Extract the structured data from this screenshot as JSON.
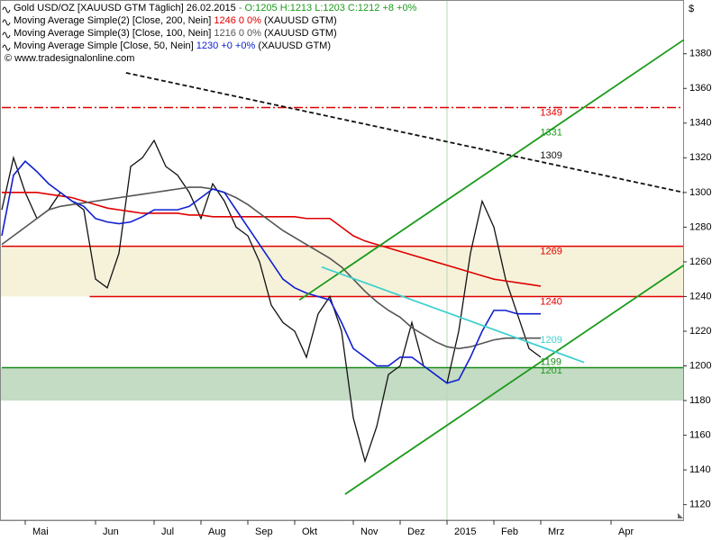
{
  "chart_data": {
    "type": "line",
    "currency": "$",
    "header": [
      {
        "text": "Gold USD/OZ [XAUUSD GTM  Täglich] 26.02.2015",
        "value_text": " - O:1205 H:1213 L:1203 C:1212 +8 +0%",
        "value_color": "#1a9a1a",
        "suffix": ""
      },
      {
        "text": "Moving Average Simple(2) [Close, 200, Nein]",
        "value_text": " 1246 0 0%",
        "value_color": "#e00000",
        "suffix": " (XAUUSD GTM)"
      },
      {
        "text": "Moving Average Simple(3) [Close, 100, Nein]",
        "value_text": " 1216 0 0%",
        "value_color": "#555555",
        "suffix": " (XAUUSD GTM)"
      },
      {
        "text": "Moving Average Simple [Close, 50, Nein]",
        "value_text": " 1230 +0 +0%",
        "value_color": "#1020d0",
        "suffix": " (XAUUSD GTM)"
      }
    ],
    "copyright": "© www.tradesignalonline.com",
    "categories": [
      null,
      null,
      "Mai",
      null,
      null,
      null,
      null,
      null,
      "Jun",
      null,
      null,
      null,
      null,
      "Jul",
      null,
      null,
      null,
      "Aug",
      null,
      null,
      null,
      "Sep",
      null,
      null,
      null,
      "Okt",
      null,
      null,
      null,
      null,
      "Nov",
      null,
      null,
      null,
      "Dez",
      null,
      null,
      null,
      "2015",
      null,
      null,
      null,
      "Feb",
      null,
      null,
      null,
      "Mrz",
      null,
      null,
      null,
      null,
      null,
      "Apr",
      null,
      null,
      null,
      null,
      null,
      null
    ],
    "series": [
      {
        "name": "Gold USD/OZ",
        "color": "#111111",
        "width": 1.3,
        "values": [
          1290,
          1320,
          1300,
          1285,
          1290,
          1300,
          1295,
          1290,
          1250,
          1245,
          1265,
          1315,
          1320,
          1330,
          1315,
          1310,
          1300,
          1285,
          1305,
          1295,
          1280,
          1275,
          1260,
          1235,
          1225,
          1220,
          1205,
          1230,
          1240,
          1220,
          1170,
          1145,
          1165,
          1195,
          1200,
          1225,
          1200,
          1195,
          1190,
          1220,
          1265,
          1295,
          1280,
          1250,
          1230,
          1210,
          1205,
          null,
          null,
          null,
          null,
          null,
          null,
          null,
          null,
          null,
          null,
          null,
          null
        ]
      },
      {
        "name": "MA 200",
        "color": "#e00000",
        "width": 1.6,
        "values": [
          1300,
          1300,
          1300,
          1300,
          1299,
          1298,
          1297,
          1295,
          1293,
          1291,
          1290,
          1289,
          1288,
          1288,
          1288,
          1288,
          1287,
          1287,
          1286,
          1286,
          1286,
          1286,
          1286,
          1286,
          1286,
          1286,
          1285,
          1285,
          1285,
          1280,
          1275,
          1272,
          1270,
          1268,
          1266,
          1264,
          1262,
          1260,
          1258,
          1256,
          1254,
          1252,
          1250,
          1249,
          1248,
          1247,
          1246,
          null,
          null,
          null,
          null,
          null,
          null,
          null,
          null,
          null,
          null,
          null,
          null
        ]
      },
      {
        "name": "MA 100",
        "color": "#555555",
        "width": 1.6,
        "values": [
          1270,
          1275,
          1280,
          1285,
          1290,
          1292,
          1293,
          1294,
          1295,
          1296,
          1297,
          1298,
          1299,
          1300,
          1301,
          1302,
          1303,
          1303,
          1302,
          1300,
          1297,
          1293,
          1288,
          1283,
          1278,
          1274,
          1270,
          1266,
          1262,
          1257,
          1250,
          1243,
          1237,
          1232,
          1228,
          1222,
          1218,
          1214,
          1211,
          1210,
          1211,
          1213,
          1215,
          1216,
          1216,
          1216,
          1216,
          null,
          null,
          null,
          null,
          null,
          null,
          null,
          null,
          null,
          null,
          null,
          null
        ]
      },
      {
        "name": "MA 50",
        "color": "#1020d0",
        "width": 1.6,
        "values": [
          1275,
          1310,
          1318,
          1312,
          1305,
          1300,
          1295,
          1292,
          1285,
          1283,
          1282,
          1283,
          1286,
          1290,
          1290,
          1290,
          1292,
          1297,
          1302,
          1300,
          1290,
          1280,
          1270,
          1260,
          1250,
          1245,
          1242,
          1240,
          1238,
          1225,
          1210,
          1205,
          1200,
          1200,
          1205,
          1205,
          1200,
          1195,
          1190,
          1192,
          1205,
          1220,
          1232,
          1232,
          1230,
          1230,
          1230,
          null,
          null,
          null,
          null,
          null,
          null,
          null,
          null,
          null,
          null,
          null,
          null
        ]
      }
    ],
    "zones": [
      {
        "from": 1240,
        "to": 1269,
        "color": "#f6f2da"
      },
      {
        "from": 1180,
        "to": 1199,
        "color": "#c4dbc4"
      }
    ],
    "levels": [
      {
        "value": 1349,
        "color": "#e00000",
        "style": "dashdot",
        "start": 0
      },
      {
        "value": 1269,
        "color": "#e00000",
        "style": "solid",
        "start": 0
      },
      {
        "value": 1240,
        "color": "#e00000",
        "style": "solid",
        "start": 7.5
      },
      {
        "value": 1199,
        "color": "#1a8a1a",
        "style": "solid",
        "start": 0
      }
    ],
    "trendlines": [
      {
        "points": [
          [
            25.4,
            1238
          ],
          [
            58.2,
            1388
          ]
        ],
        "color": "#1a9a1a",
        "style": "solid",
        "label": 1331
      },
      {
        "points": [
          [
            29.3,
            1126
          ],
          [
            58.2,
            1258
          ]
        ],
        "color": "#1a9a1a",
        "style": "solid",
        "label": 1201
      },
      {
        "points": [
          [
            10.6,
            1369
          ],
          [
            58.2,
            1300
          ]
        ],
        "color": "#111111",
        "style": "dashed",
        "label": 1309
      },
      {
        "points": [
          [
            27.3,
            1257
          ],
          [
            49.7,
            1202
          ]
        ],
        "color": "#40d0d0",
        "style": "solid",
        "label": 1209
      }
    ],
    "label_index": 45.8,
    "ylim": [
      1111,
      1411
    ],
    "yticks": [
      1120,
      1140,
      1160,
      1180,
      1200,
      1220,
      1240,
      1260,
      1280,
      1300,
      1320,
      1340,
      1360,
      1380
    ],
    "grid": false
  }
}
